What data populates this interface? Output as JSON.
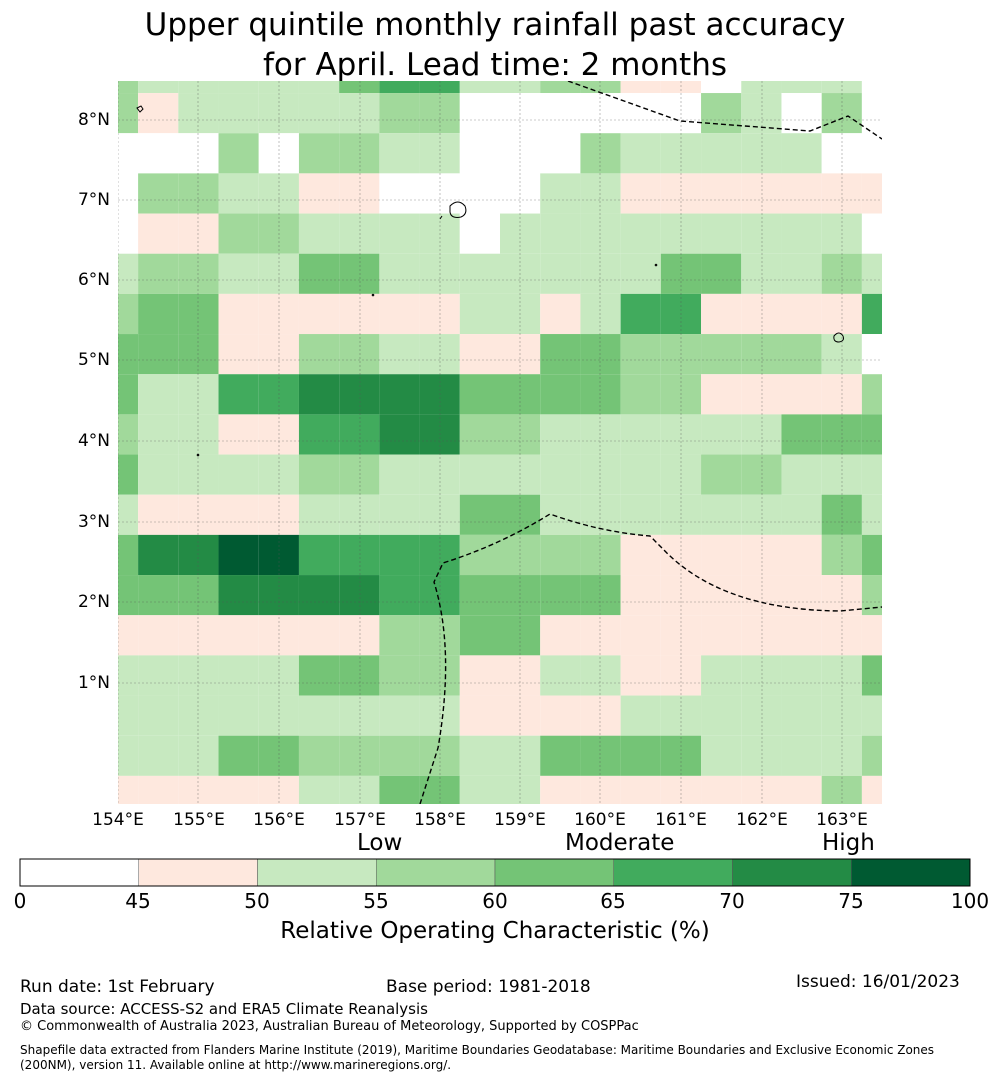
{
  "title": {
    "line1": "Upper quintile monthly rainfall past accuracy",
    "line2": "for April. Lead time: 2 months"
  },
  "map": {
    "lat_labels": [
      "8°N",
      "7°N",
      "6°N",
      "5°N",
      "4°N",
      "3°N",
      "2°N",
      "1°N"
    ],
    "lon_labels": [
      "154°E",
      "155°E",
      "156°E",
      "157°E",
      "158°E",
      "159°E",
      "160°E",
      "161°E",
      "162°E",
      "163°E"
    ],
    "grid": [
      [
        3,
        2,
        2,
        2,
        2,
        2,
        4,
        5,
        5,
        2,
        2,
        3,
        3,
        1,
        1,
        0,
        2,
        2,
        2,
        0
      ],
      [
        3,
        1,
        2,
        2,
        2,
        2,
        2,
        3,
        3,
        0,
        0,
        0,
        0,
        0,
        0,
        3,
        2,
        0,
        3,
        0
      ],
      [
        0,
        0,
        0,
        3,
        0,
        3,
        3,
        2,
        2,
        0,
        0,
        0,
        3,
        2,
        2,
        2,
        2,
        2,
        0,
        0
      ],
      [
        0,
        3,
        3,
        2,
        2,
        1,
        1,
        0,
        0,
        0,
        0,
        2,
        2,
        1,
        1,
        1,
        1,
        1,
        1,
        1
      ],
      [
        0,
        1,
        1,
        3,
        3,
        2,
        2,
        2,
        2,
        0,
        2,
        2,
        2,
        2,
        2,
        2,
        2,
        2,
        2,
        0
      ],
      [
        2,
        3,
        3,
        2,
        2,
        4,
        4,
        2,
        2,
        2,
        2,
        2,
        2,
        2,
        4,
        4,
        2,
        2,
        3,
        2
      ],
      [
        3,
        4,
        4,
        1,
        1,
        1,
        1,
        1,
        1,
        2,
        2,
        1,
        2,
        5,
        5,
        1,
        1,
        1,
        1,
        5
      ],
      [
        4,
        4,
        4,
        1,
        1,
        3,
        3,
        2,
        2,
        1,
        1,
        4,
        4,
        3,
        3,
        3,
        3,
        3,
        2,
        0
      ],
      [
        4,
        2,
        2,
        5,
        5,
        6,
        6,
        6,
        6,
        4,
        4,
        4,
        4,
        3,
        3,
        1,
        1,
        1,
        1,
        3
      ],
      [
        3,
        2,
        2,
        1,
        1,
        5,
        5,
        6,
        6,
        3,
        3,
        2,
        2,
        2,
        2,
        2,
        2,
        4,
        4,
        4
      ],
      [
        4,
        2,
        2,
        2,
        2,
        3,
        3,
        2,
        2,
        2,
        2,
        2,
        2,
        2,
        2,
        3,
        3,
        2,
        2,
        2
      ],
      [
        2,
        1,
        1,
        1,
        1,
        2,
        2,
        2,
        2,
        4,
        4,
        2,
        2,
        2,
        2,
        2,
        2,
        2,
        4,
        2
      ],
      [
        4,
        6,
        6,
        7,
        7,
        5,
        5,
        5,
        5,
        3,
        3,
        3,
        3,
        1,
        1,
        1,
        1,
        1,
        3,
        4
      ],
      [
        4,
        4,
        4,
        6,
        6,
        6,
        6,
        5,
        5,
        4,
        4,
        4,
        4,
        1,
        1,
        1,
        1,
        1,
        1,
        3
      ],
      [
        1,
        1,
        1,
        1,
        1,
        1,
        1,
        3,
        3,
        4,
        4,
        1,
        1,
        1,
        1,
        1,
        1,
        1,
        1,
        1
      ],
      [
        2,
        2,
        2,
        2,
        2,
        4,
        4,
        3,
        3,
        1,
        1,
        2,
        2,
        1,
        1,
        2,
        2,
        2,
        2,
        4
      ],
      [
        2,
        2,
        2,
        2,
        2,
        2,
        2,
        2,
        2,
        1,
        1,
        1,
        1,
        2,
        2,
        2,
        2,
        2,
        2,
        2
      ],
      [
        2,
        2,
        2,
        4,
        4,
        3,
        3,
        3,
        3,
        2,
        2,
        4,
        4,
        4,
        4,
        2,
        2,
        2,
        2,
        3
      ],
      [
        1,
        1,
        1,
        1,
        1,
        2,
        2,
        4,
        4,
        2,
        2,
        1,
        1,
        1,
        1,
        1,
        1,
        1,
        3,
        1
      ],
      [
        1,
        3,
        3,
        4,
        4,
        1,
        1,
        3,
        3,
        1,
        1,
        3,
        3,
        1,
        1,
        2,
        2,
        2,
        2,
        1
      ]
    ]
  },
  "legend": {
    "categories": [
      "Low",
      "Moderate",
      "High"
    ],
    "ticks": [
      "0",
      "45",
      "50",
      "55",
      "60",
      "65",
      "70",
      "75",
      "100"
    ],
    "colors": [
      "#ffffff",
      "#fee8de",
      "#c7e9c0",
      "#a1d99b",
      "#74c476",
      "#41ab5d",
      "#238b45",
      "#005a32"
    ],
    "title": "Relative Operating Characteristic (%)"
  },
  "footer": {
    "run_date": "Run date: 1st February",
    "base_period": "Base period: 1981-2018",
    "issued": "Issued: 16/01/2023",
    "data_source": "Data source: ACCESS-S2 and ERA5 Climate Reanalysis",
    "copyright": "© Commonwealth of Australia 2023, Australian Bureau of Meteorology, Supported by COSPPac",
    "shapefile": "Shapefile data extracted from Flanders Marine Institute (2019), Maritime Boundaries Geodatabase: Maritime Boundaries and Exclusive Economic Zones (200NM), version 11. Available online at http://www.marineregions.org/."
  }
}
